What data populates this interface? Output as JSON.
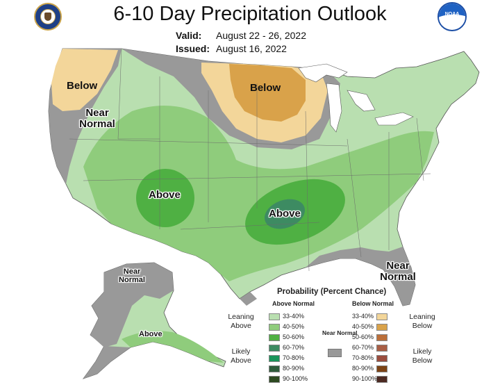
{
  "title": "6-10 Day Precipitation Outlook",
  "valid": {
    "key": "Valid:",
    "value": "August 22 - 26, 2022"
  },
  "issued": {
    "key": "Issued:",
    "value": "August 16, 2022"
  },
  "agency_logo": "commerce-seal-icon",
  "noaa_logo": {
    "icon": "noaa-logo-icon",
    "text": "NOAA"
  },
  "map_labels": {
    "below_nw": "Below",
    "near_normal_west": "Near Normal",
    "below_north": "Below",
    "above_west": "Above",
    "above_south": "Above",
    "near_normal_se": "Near Normal",
    "near_normal_ak": "Near Normal",
    "above_ak": "Above"
  },
  "legend": {
    "title": "Probability (Percent Chance)",
    "above_header": "Above Normal",
    "below_header": "Below Normal",
    "above_rows": [
      {
        "label": "33-40%",
        "color": "#b9dfb0"
      },
      {
        "label": "40-50%",
        "color": "#8fcc7c"
      },
      {
        "label": "50-60%",
        "color": "#4fb043"
      },
      {
        "label": "60-70%",
        "color": "#3d8b62"
      },
      {
        "label": "70-80%",
        "color": "#19955a"
      },
      {
        "label": "80-90%",
        "color": "#2e5c3b"
      },
      {
        "label": "90-100%",
        "color": "#2d4a21"
      }
    ],
    "below_rows": [
      {
        "label": "33-40%",
        "color": "#f3d69a"
      },
      {
        "label": "40-50%",
        "color": "#d9a24a"
      },
      {
        "label": "50-60%",
        "color": "#bb6f3a"
      },
      {
        "label": "60-70%",
        "color": "#a85e45"
      },
      {
        "label": "70-80%",
        "color": "#9a4d3e"
      },
      {
        "label": "80-90%",
        "color": "#7c4315"
      },
      {
        "label": "90-100%",
        "color": "#4c2a22"
      }
    ],
    "leaning_above": "Leaning Above",
    "likely_above": "Likely Above",
    "leaning_below": "Leaning Below",
    "likely_below": "Likely Below",
    "near_normal": "Near Normal",
    "near_normal_color": "#999999"
  }
}
